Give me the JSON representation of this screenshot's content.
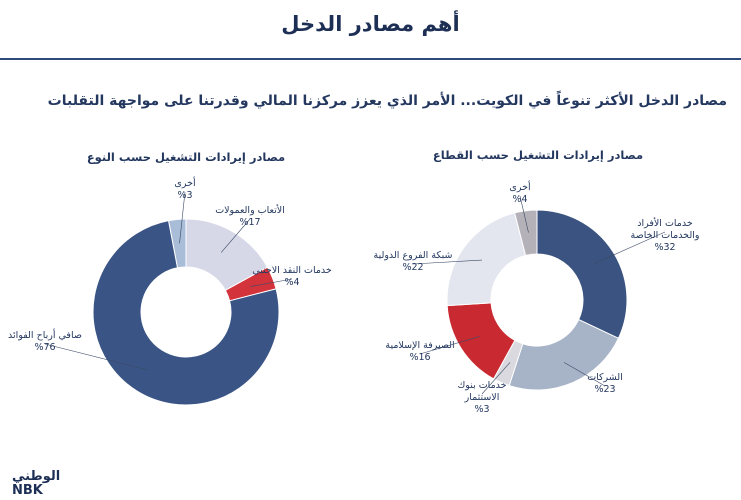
{
  "header": {
    "title": "أهم مصادر الدخل",
    "subtitle": "مصادر الدخل الأكثر تنوعاً في الكويت... الأمر الذي يعزز مركزنا المالي وقدرتنا على مواجهة التقلبات"
  },
  "chart_data": [
    {
      "type": "donut",
      "title": "مصادر إيرادات التشغيل حسب النوع",
      "categories": [
        "الأتعاب والعمولات",
        "خدمات النقد الاجنبي",
        "صافي أرباح الفوائد",
        "أخرى"
      ],
      "values": [
        17,
        4,
        76,
        3
      ],
      "value_labels": [
        "%17",
        "%4",
        "%76",
        "%3"
      ],
      "colors": [
        "#d6d8e8",
        "#d3333a",
        "#3a5585",
        "#a9bcd8"
      ]
    },
    {
      "type": "donut",
      "title": "مصادر إيرادات التشغيل حسب القطاع",
      "categories": [
        "خدمات الأفراد والخدمات الخاصة",
        "الشركات",
        "خدمات بنوك الاستثمار",
        "الصيرفة الإسلامية",
        "شبكة الفروع الدولية",
        "أخرى"
      ],
      "values": [
        32,
        23,
        3,
        16,
        22,
        4
      ],
      "value_labels": [
        "%32",
        "%23",
        "%3",
        "%16",
        "%22",
        "%4"
      ],
      "colors": [
        "#3b5380",
        "#a7b4c7",
        "#d9d9df",
        "#c92a31",
        "#e4e6ef",
        "#b4b2b8"
      ]
    }
  ],
  "footer": {
    "logo_arabic": "الوطني",
    "logo_latin": "NBK"
  }
}
